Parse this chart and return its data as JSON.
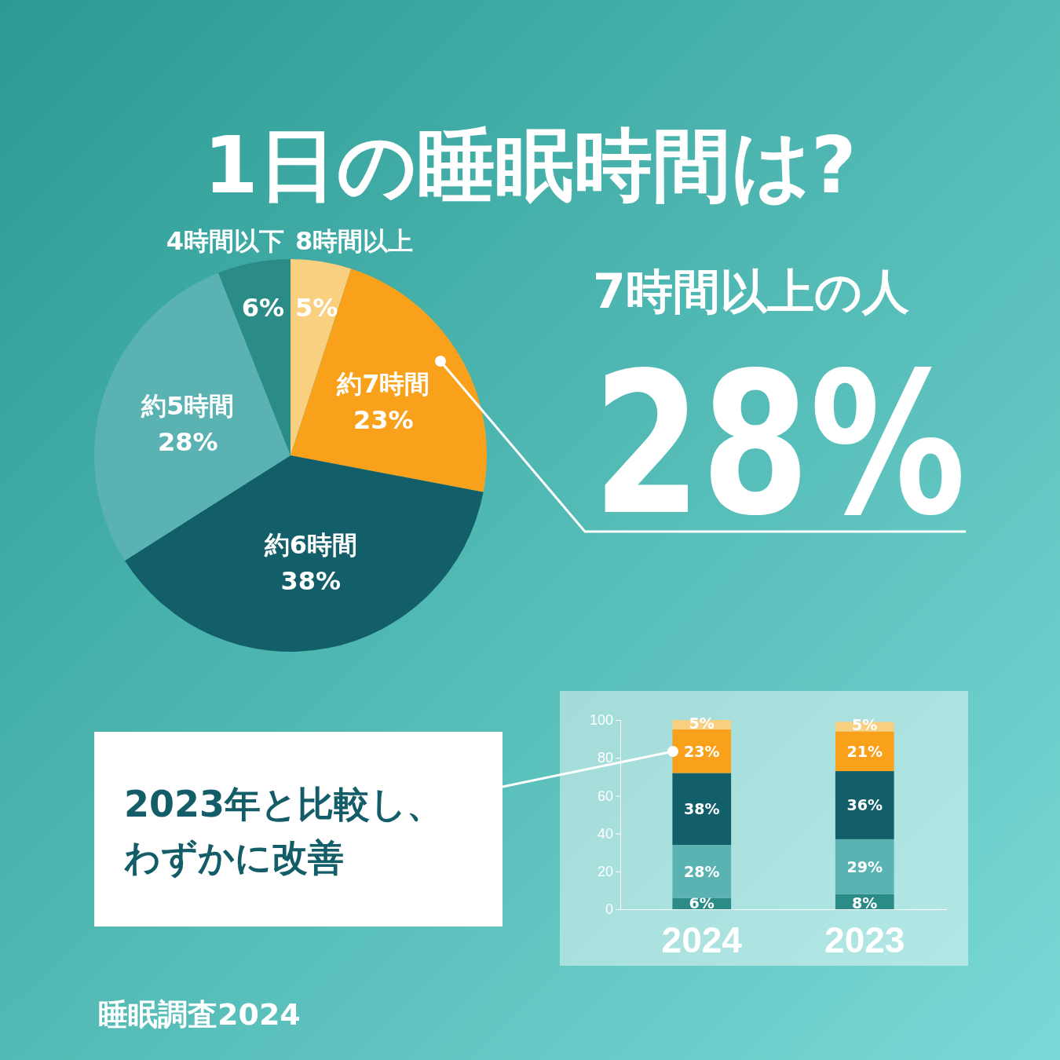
{
  "chart_data": [
    {
      "type": "pie",
      "title": "1日の睡眠時間は?",
      "categories": [
        "8時間以上",
        "約7時間",
        "約6時間",
        "約5時間",
        "4時間以下"
      ],
      "values": [
        5,
        23,
        38,
        28,
        6
      ],
      "value_labels": [
        "5%",
        "23%",
        "38%",
        "28%",
        "6%"
      ],
      "colors": [
        "#f9cf80",
        "#f9a11b",
        "#125e69",
        "#5ab3b2",
        "#2b8b87"
      ],
      "annotations": [
        "7時間以上の人",
        "28%",
        "睡眠調査2024"
      ]
    },
    {
      "type": "bar",
      "stacked": true,
      "categories": [
        "2024",
        "2023"
      ],
      "ylim": [
        0,
        100
      ],
      "yticks": [
        0,
        20,
        40,
        60,
        80,
        100
      ],
      "series": [
        {
          "color": "#2b8b87",
          "values": [
            6,
            8
          ],
          "value_labels": [
            "6%",
            "8%"
          ]
        },
        {
          "color": "#5ab3b2",
          "values": [
            28,
            29
          ],
          "value_labels": [
            "28%",
            "29%"
          ]
        },
        {
          "color": "#125e69",
          "values": [
            38,
            36
          ],
          "value_labels": [
            "38%",
            "36%"
          ]
        },
        {
          "color": "#f9a11b",
          "values": [
            23,
            21
          ],
          "value_labels": [
            "23%",
            "21%"
          ]
        },
        {
          "color": "#f9cf80",
          "values": [
            5,
            5
          ],
          "value_labels": [
            "5%",
            "5%"
          ]
        }
      ],
      "annotations": [
        "2023年と比較し、わずかに改善"
      ]
    }
  ]
}
